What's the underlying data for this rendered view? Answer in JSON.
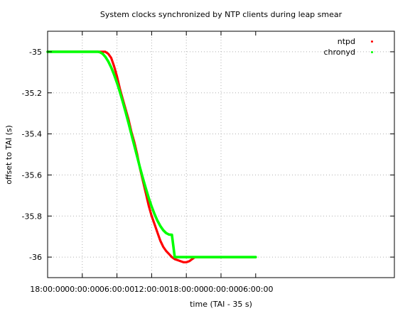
{
  "chart_data": {
    "type": "scatter",
    "title": "System clocks synchronized by NTP clients during leap smear",
    "xlabel": "time (TAI - 35 s)",
    "ylabel": "offset to TAI (s)",
    "xlim": [
      0,
      60
    ],
    "ylim": [
      -36.1,
      -34.9
    ],
    "x_ticks": [
      {
        "pos": 0,
        "label": "18:00:00"
      },
      {
        "pos": 6,
        "label": "00:00:00"
      },
      {
        "pos": 12,
        "label": "06:00:00"
      },
      {
        "pos": 18,
        "label": "12:00:00"
      },
      {
        "pos": 24,
        "label": "18:00:00"
      },
      {
        "pos": 30,
        "label": "00:00:00"
      },
      {
        "pos": 36,
        "label": "06:00:00"
      }
    ],
    "y_ticks": [
      {
        "value": -35,
        "label": "-35"
      },
      {
        "value": -35.2,
        "label": "-35.2"
      },
      {
        "value": -35.4,
        "label": "-35.4"
      },
      {
        "value": -35.6,
        "label": "-35.6"
      },
      {
        "value": -35.8,
        "label": "-35.8"
      },
      {
        "value": -36,
        "label": "-36"
      }
    ],
    "grid": true,
    "legend_position": "top-right",
    "series": [
      {
        "name": "ntpd",
        "color": "#ff0000",
        "x": [
          0,
          2,
          6,
          10,
          10.5,
          11,
          11.5,
          12,
          12.5,
          13,
          13.5,
          14,
          14.5,
          15,
          15.5,
          16,
          16.5,
          17,
          17.5,
          18,
          18.5,
          19,
          19.5,
          20,
          20.5,
          21,
          21.5,
          22,
          22.5,
          23,
          23.5,
          24,
          24.5,
          25,
          25.5,
          26,
          27,
          28,
          30,
          33,
          36
        ],
        "y": [
          -35,
          -35,
          -35,
          -35,
          -35.01,
          -35.03,
          -35.07,
          -35.12,
          -35.18,
          -35.23,
          -35.28,
          -35.33,
          -35.39,
          -35.44,
          -35.5,
          -35.57,
          -35.63,
          -35.69,
          -35.75,
          -35.8,
          -35.84,
          -35.88,
          -35.92,
          -35.95,
          -35.97,
          -35.985,
          -36.0,
          -36.01,
          -36.015,
          -36.02,
          -36.025,
          -36.025,
          -36.02,
          -36.01,
          -36.0,
          -36,
          -36,
          -36,
          -36,
          -36,
          -36
        ]
      },
      {
        "name": "chronyd",
        "color": "#00ff00",
        "x": [
          0,
          2,
          6,
          8.6,
          9,
          9.5,
          10,
          10.5,
          11,
          11.5,
          12,
          12.5,
          13,
          13.5,
          14,
          14.5,
          15,
          15.5,
          16,
          16.5,
          17,
          17.5,
          18,
          18.5,
          19,
          19.5,
          20,
          20.5,
          21,
          21.5,
          22,
          22.5,
          23,
          23.5,
          24,
          27,
          30,
          33,
          36
        ],
        "y": [
          -35,
          -35,
          -35,
          -35,
          -35.0014,
          -35.0094,
          -35.0249,
          -35.0474,
          -35.0763,
          -35.1111,
          -35.151,
          -35.1954,
          -35.2434,
          -35.2944,
          -35.3476,
          -35.4021,
          -35.4571,
          -35.5119,
          -35.5656,
          -35.6173,
          -35.6664,
          -35.7121,
          -35.7537,
          -35.7907,
          -35.8225,
          -35.8487,
          -35.8689,
          -35.8827,
          -35.8902,
          -35.8915,
          -36,
          -36,
          -36,
          -36,
          -36,
          -36,
          -36,
          -36,
          -36
        ]
      }
    ]
  }
}
